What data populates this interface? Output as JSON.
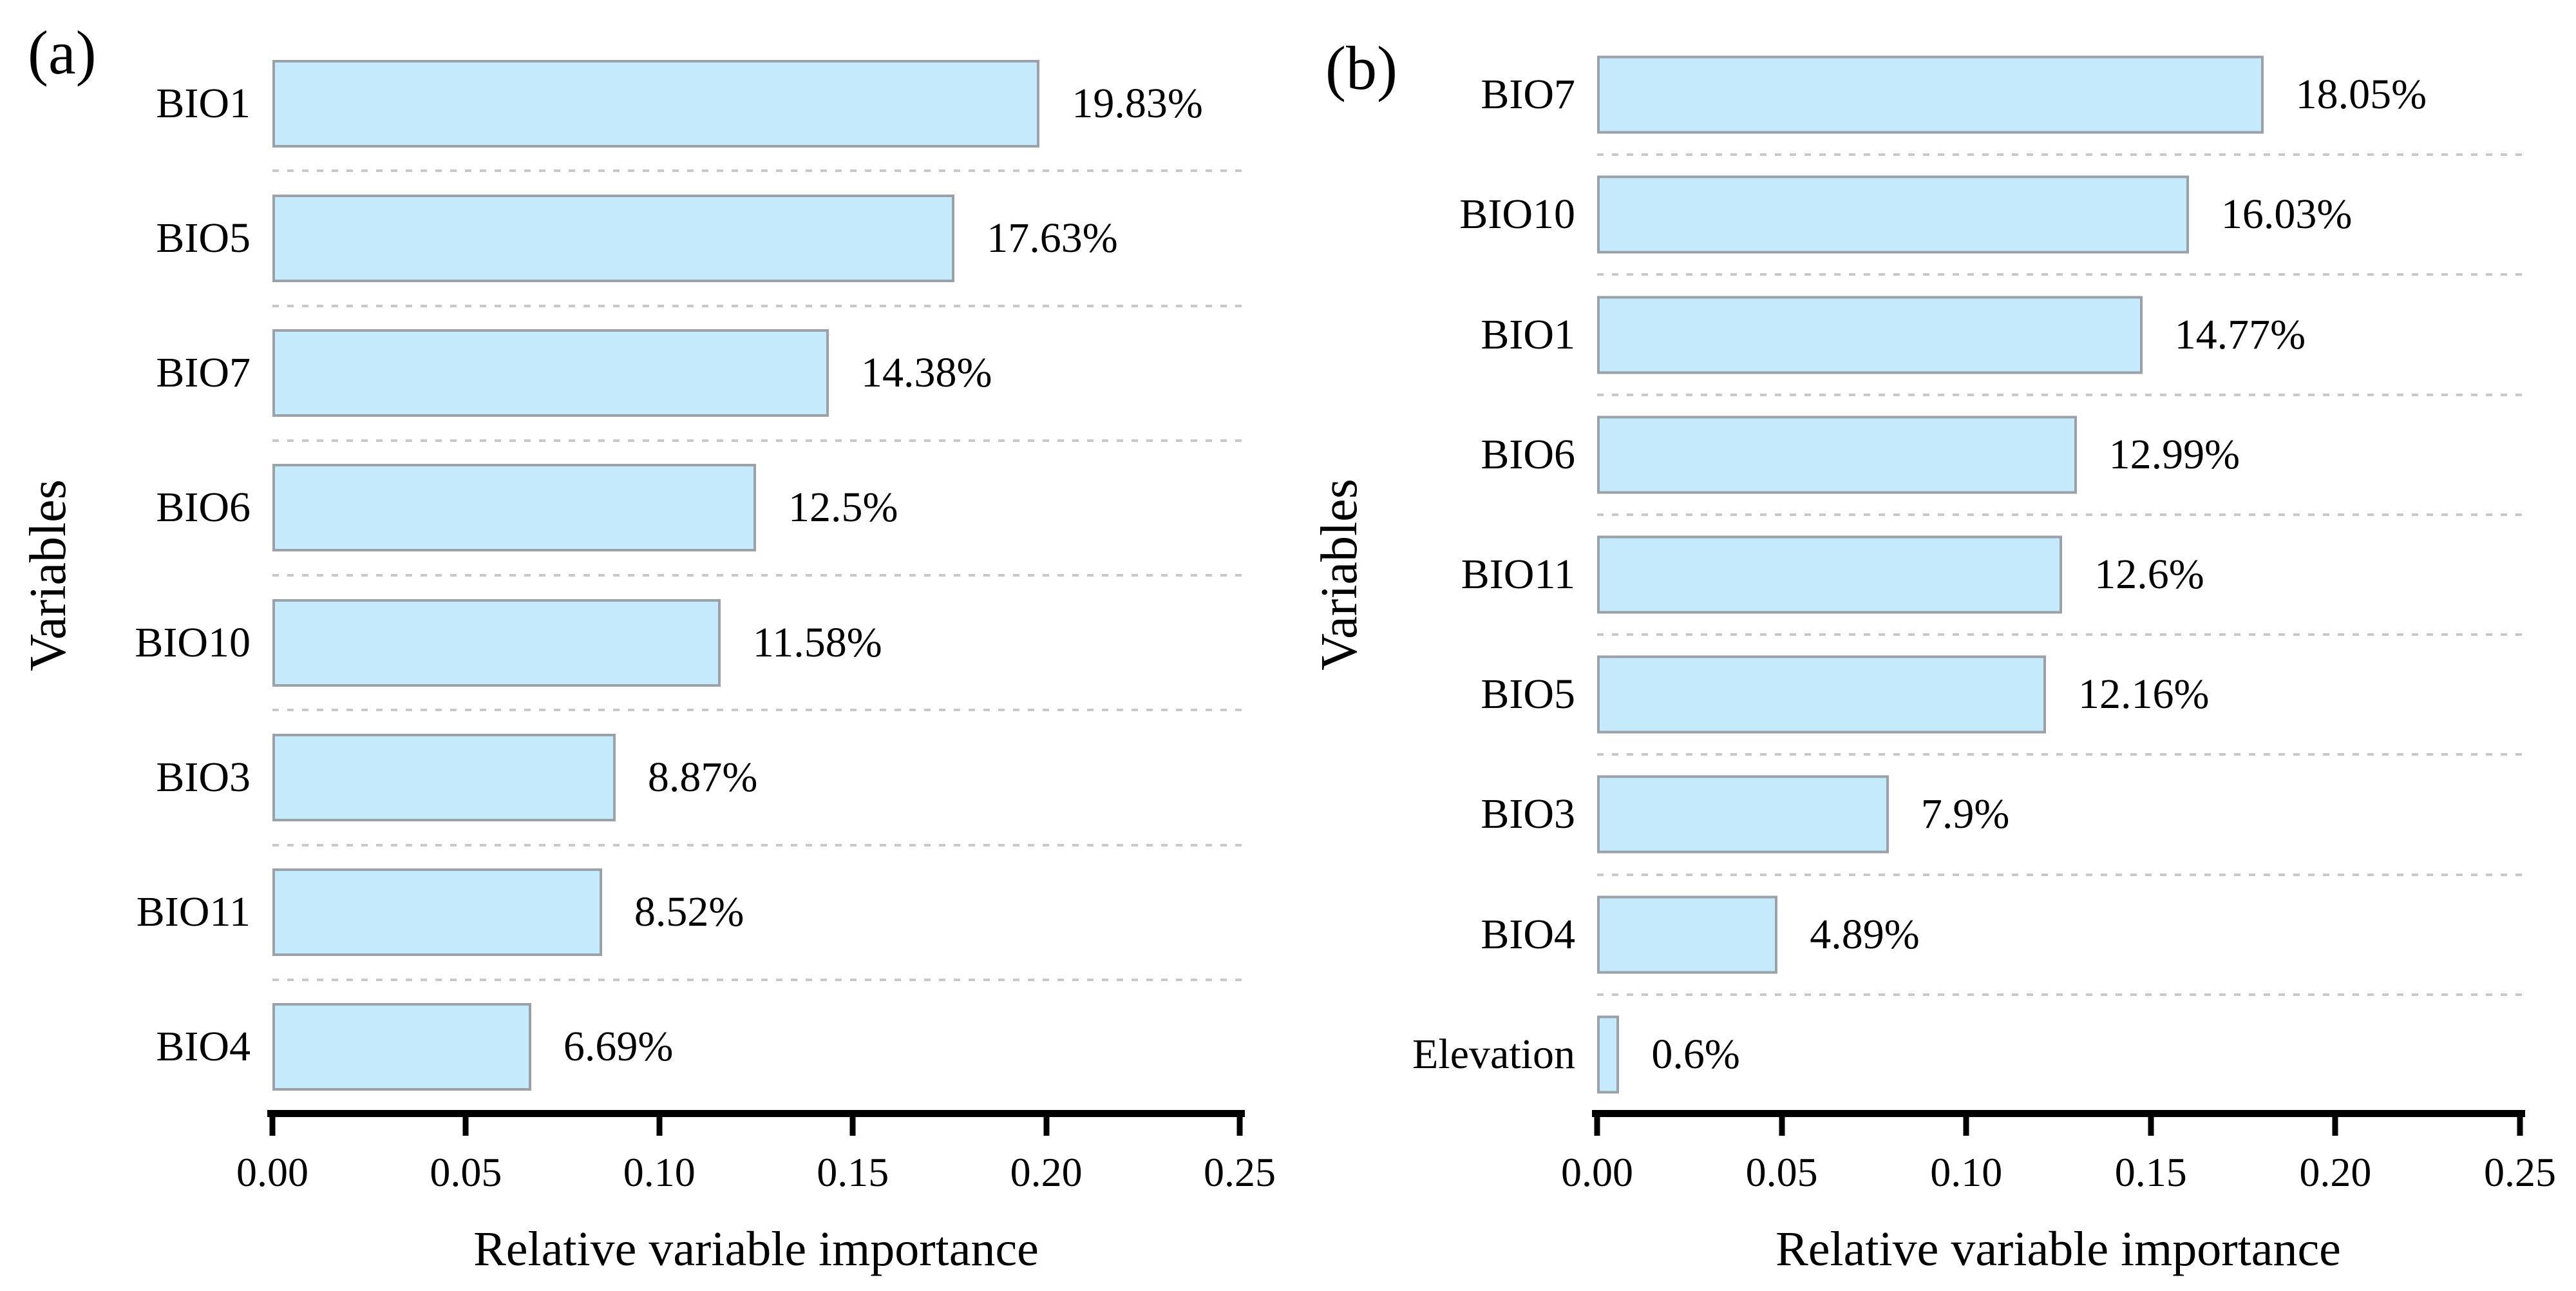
{
  "colors": {
    "bar_fill": "#C5EAFB",
    "bar_border": "#9AA1A8",
    "grid": "#C8C8C8",
    "axis": "#000000",
    "text": "#000000"
  },
  "chart_data": [
    {
      "type": "bar",
      "orientation": "horizontal",
      "panel_label": "(a)",
      "title": "",
      "xlabel": "Relative variable importance",
      "ylabel": "Variables",
      "xlim": [
        0,
        0.25
      ],
      "x_tick_labels": [
        "0.00",
        "0.05",
        "0.10",
        "0.15",
        "0.20",
        "0.25"
      ],
      "grid": "dashed horizontal separators between categories",
      "legend": false,
      "categories": [
        "BIO1",
        "BIO5",
        "BIO7",
        "BIO6",
        "BIO10",
        "BIO3",
        "BIO11",
        "BIO4"
      ],
      "values": [
        0.1983,
        0.1763,
        0.1438,
        0.125,
        0.1158,
        0.0887,
        0.0852,
        0.0669
      ],
      "value_labels": [
        "19.83%",
        "17.63%",
        "14.38%",
        "12.5%",
        "11.58%",
        "8.87%",
        "8.52%",
        "6.69%"
      ]
    },
    {
      "type": "bar",
      "orientation": "horizontal",
      "panel_label": "(b)",
      "title": "",
      "xlabel": "Relative variable importance",
      "ylabel": "Variables",
      "xlim": [
        0,
        0.25
      ],
      "x_tick_labels": [
        "0.00",
        "0.05",
        "0.10",
        "0.15",
        "0.20",
        "0.25"
      ],
      "grid": "dashed horizontal separators between categories",
      "legend": false,
      "categories": [
        "BIO7",
        "BIO10",
        "BIO1",
        "BIO6",
        "BIO11",
        "BIO5",
        "BIO3",
        "BIO4",
        "Elevation"
      ],
      "values": [
        0.1805,
        0.1603,
        0.1477,
        0.1299,
        0.126,
        0.1216,
        0.079,
        0.0489,
        0.006
      ],
      "value_labels": [
        "18.05%",
        "16.03%",
        "14.77%",
        "12.99%",
        "12.6%",
        "12.16%",
        "7.9%",
        "4.89%",
        "0.6%"
      ]
    }
  ]
}
